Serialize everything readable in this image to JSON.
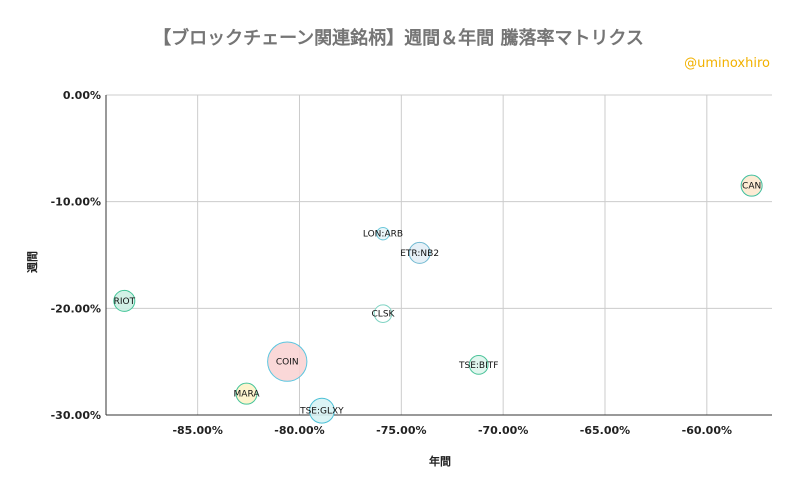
{
  "chart_data": {
    "type": "bubble",
    "title": "【ブロックチェーン関連銘柄】週間＆年間 騰落率マトリクス",
    "credit": "@uminoxhiro",
    "xlabel": "年間",
    "ylabel": "週間",
    "xlim": [
      -89.5,
      -56.8
    ],
    "ylim": [
      -30,
      0
    ],
    "xticks": [
      "-85.00%",
      "-80.00%",
      "-75.00%",
      "-70.00%",
      "-65.00%",
      "-60.00%"
    ],
    "xtick_values": [
      -85,
      -80,
      -75,
      -70,
      -65,
      -60
    ],
    "yticks": [
      "0.00%",
      "-10.00%",
      "-20.00%",
      "-30.00%"
    ],
    "ytick_values": [
      0,
      -10,
      -20,
      -30
    ],
    "grid": true,
    "points": [
      {
        "label": "CAN",
        "x": -57.8,
        "y": -8.5,
        "size": 1.0,
        "fill": "#fde9cf",
        "stroke": "#3fbf9f"
      },
      {
        "label": "LON:ARB",
        "x": -75.9,
        "y": -13.0,
        "size": 0.35,
        "fill": "#e8f6fa",
        "stroke": "#6cc7da"
      },
      {
        "label": "ETR:NB2",
        "x": -74.1,
        "y": -14.8,
        "size": 1.0,
        "fill": "#e3eef6",
        "stroke": "#6fb8d0"
      },
      {
        "label": "RIOT",
        "x": -88.6,
        "y": -19.3,
        "size": 1.0,
        "fill": "#cdf0e3",
        "stroke": "#42c497"
      },
      {
        "label": "CLSK",
        "x": -75.9,
        "y": -20.5,
        "size": 0.7,
        "fill": "#ffffff",
        "stroke": "#7fd3c3"
      },
      {
        "label": "COIN",
        "x": -80.6,
        "y": -25.0,
        "size": 3.5,
        "fill": "#fad4d4",
        "stroke": "#5bc6e0"
      },
      {
        "label": "TSE:BITF",
        "x": -71.2,
        "y": -25.3,
        "size": 0.8,
        "fill": "#def5ec",
        "stroke": "#4cc39a"
      },
      {
        "label": "MARA",
        "x": -82.6,
        "y": -28.0,
        "size": 1.0,
        "fill": "#fdf3c9",
        "stroke": "#47c49b"
      },
      {
        "label": "TSE:GLXY",
        "x": -78.9,
        "y": -29.6,
        "size": 1.4,
        "fill": "#d7f3f4",
        "stroke": "#4cc0d6"
      }
    ]
  }
}
